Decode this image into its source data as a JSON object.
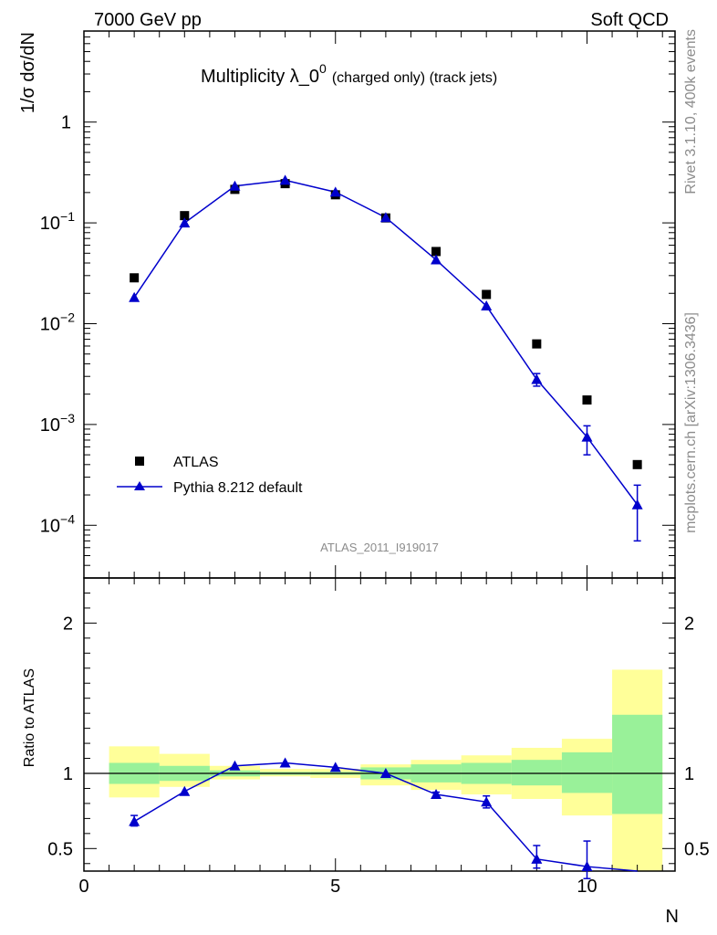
{
  "header": {
    "energy_label": "7000 GeV pp",
    "process_label": "Soft QCD"
  },
  "side_labels": {
    "rivet": "Rivet 3.1.10,  400k events",
    "site": "mcplots.cern.ch [arXiv:1306.3436]"
  },
  "analysis_id": "ATLAS_2011_I919017",
  "colors": {
    "mc": "#0000cc",
    "data": "#000000",
    "band_inner": "#99f199",
    "band_outer": "#ffff99",
    "side_text": "#8c8c8c"
  },
  "chart_data": [
    {
      "type": "scatter",
      "title_main": "Multiplicity λ_0",
      "title_sup": "0",
      "title_sub": "(charged only) (track jets)",
      "ylabel": "1/σ dσ/dN",
      "yscale": "log",
      "ylim": [
        3e-05,
        8
      ],
      "xlim": [
        0,
        11.75
      ],
      "yticks": [
        {
          "value": 1,
          "label": "1",
          "exp": ""
        },
        {
          "value": 0.1,
          "label": "10",
          "exp": "−1"
        },
        {
          "value": 0.01,
          "label": "10",
          "exp": "−2"
        },
        {
          "value": 0.001,
          "label": "10",
          "exp": "−3"
        },
        {
          "value": 0.0001,
          "label": "10",
          "exp": "−4"
        }
      ],
      "legend_position": "bottom-left",
      "series": [
        {
          "name": "ATLAS",
          "marker": "square",
          "x": [
            1,
            2,
            3,
            4,
            5,
            6,
            7,
            8,
            9,
            10,
            11
          ],
          "y": [
            0.0285,
            0.118,
            0.215,
            0.245,
            0.19,
            0.112,
            0.052,
            0.0195,
            0.0063,
            0.00175,
            0.0004
          ]
        },
        {
          "name": "Pythia 8.212 default",
          "marker": "triangle",
          "x": [
            1,
            2,
            3,
            4,
            5,
            6,
            7,
            8,
            9,
            10,
            11
          ],
          "y": [
            0.0182,
            0.1,
            0.232,
            0.265,
            0.202,
            0.113,
            0.043,
            0.015,
            0.0028,
            0.00075,
            0.00016
          ],
          "err_low": [
            0,
            0,
            0,
            0,
            0,
            0,
            0,
            0,
            0.0004,
            0.00025,
            9e-05
          ],
          "err_high": [
            0,
            0,
            0,
            0,
            0,
            0,
            0,
            0,
            0.0004,
            0.00022,
            9e-05
          ]
        }
      ]
    },
    {
      "type": "scatter",
      "ylabel": "Ratio to ATLAS",
      "xlabel": "N",
      "ylim": [
        0.35,
        2.3
      ],
      "xlim": [
        0,
        11.75
      ],
      "yticks": [
        {
          "value": 0.5,
          "label": "0.5"
        },
        {
          "value": 1,
          "label": "1"
        },
        {
          "value": 2,
          "label": "2"
        }
      ],
      "xticks": [
        {
          "value": 0,
          "label": "0"
        },
        {
          "value": 5,
          "label": "5"
        },
        {
          "value": 10,
          "label": "10"
        }
      ],
      "bands": {
        "bins": [
          [
            0.5,
            1.5
          ],
          [
            1.5,
            2.5
          ],
          [
            2.5,
            3.5
          ],
          [
            3.5,
            4.5
          ],
          [
            4.5,
            5.5
          ],
          [
            5.5,
            6.5
          ],
          [
            6.5,
            7.5
          ],
          [
            7.5,
            8.5
          ],
          [
            8.5,
            9.5
          ],
          [
            9.5,
            10.5
          ],
          [
            10.5,
            11.5
          ]
        ],
        "inner_low": [
          0.93,
          0.95,
          0.98,
          0.99,
          0.99,
          0.96,
          0.94,
          0.93,
          0.92,
          0.87,
          0.73
        ],
        "inner_high": [
          1.07,
          1.05,
          1.02,
          1.01,
          1.01,
          1.04,
          1.06,
          1.07,
          1.09,
          1.14,
          1.39
        ],
        "outer_low": [
          0.84,
          0.91,
          0.96,
          0.98,
          0.97,
          0.92,
          0.89,
          0.86,
          0.83,
          0.72,
          0.35
        ],
        "outer_high": [
          1.18,
          1.13,
          1.05,
          1.03,
          1.03,
          1.06,
          1.09,
          1.12,
          1.17,
          1.23,
          1.69
        ]
      },
      "series": [
        {
          "name": "Pythia 8.212 default",
          "marker": "triangle",
          "x": [
            1,
            2,
            3,
            4,
            5,
            6,
            7,
            8,
            9,
            10,
            11
          ],
          "y": [
            0.68,
            0.88,
            1.05,
            1.07,
            1.04,
            1.0,
            0.86,
            0.81,
            0.43,
            0.38,
            0.33
          ],
          "err_low": [
            0.03,
            0,
            0,
            0,
            0,
            0,
            0.015,
            0.04,
            0.06,
            0.08,
            0
          ],
          "err_high": [
            0.04,
            0,
            0,
            0,
            0,
            0,
            0.015,
            0.04,
            0.09,
            0.17,
            0
          ]
        }
      ]
    }
  ]
}
